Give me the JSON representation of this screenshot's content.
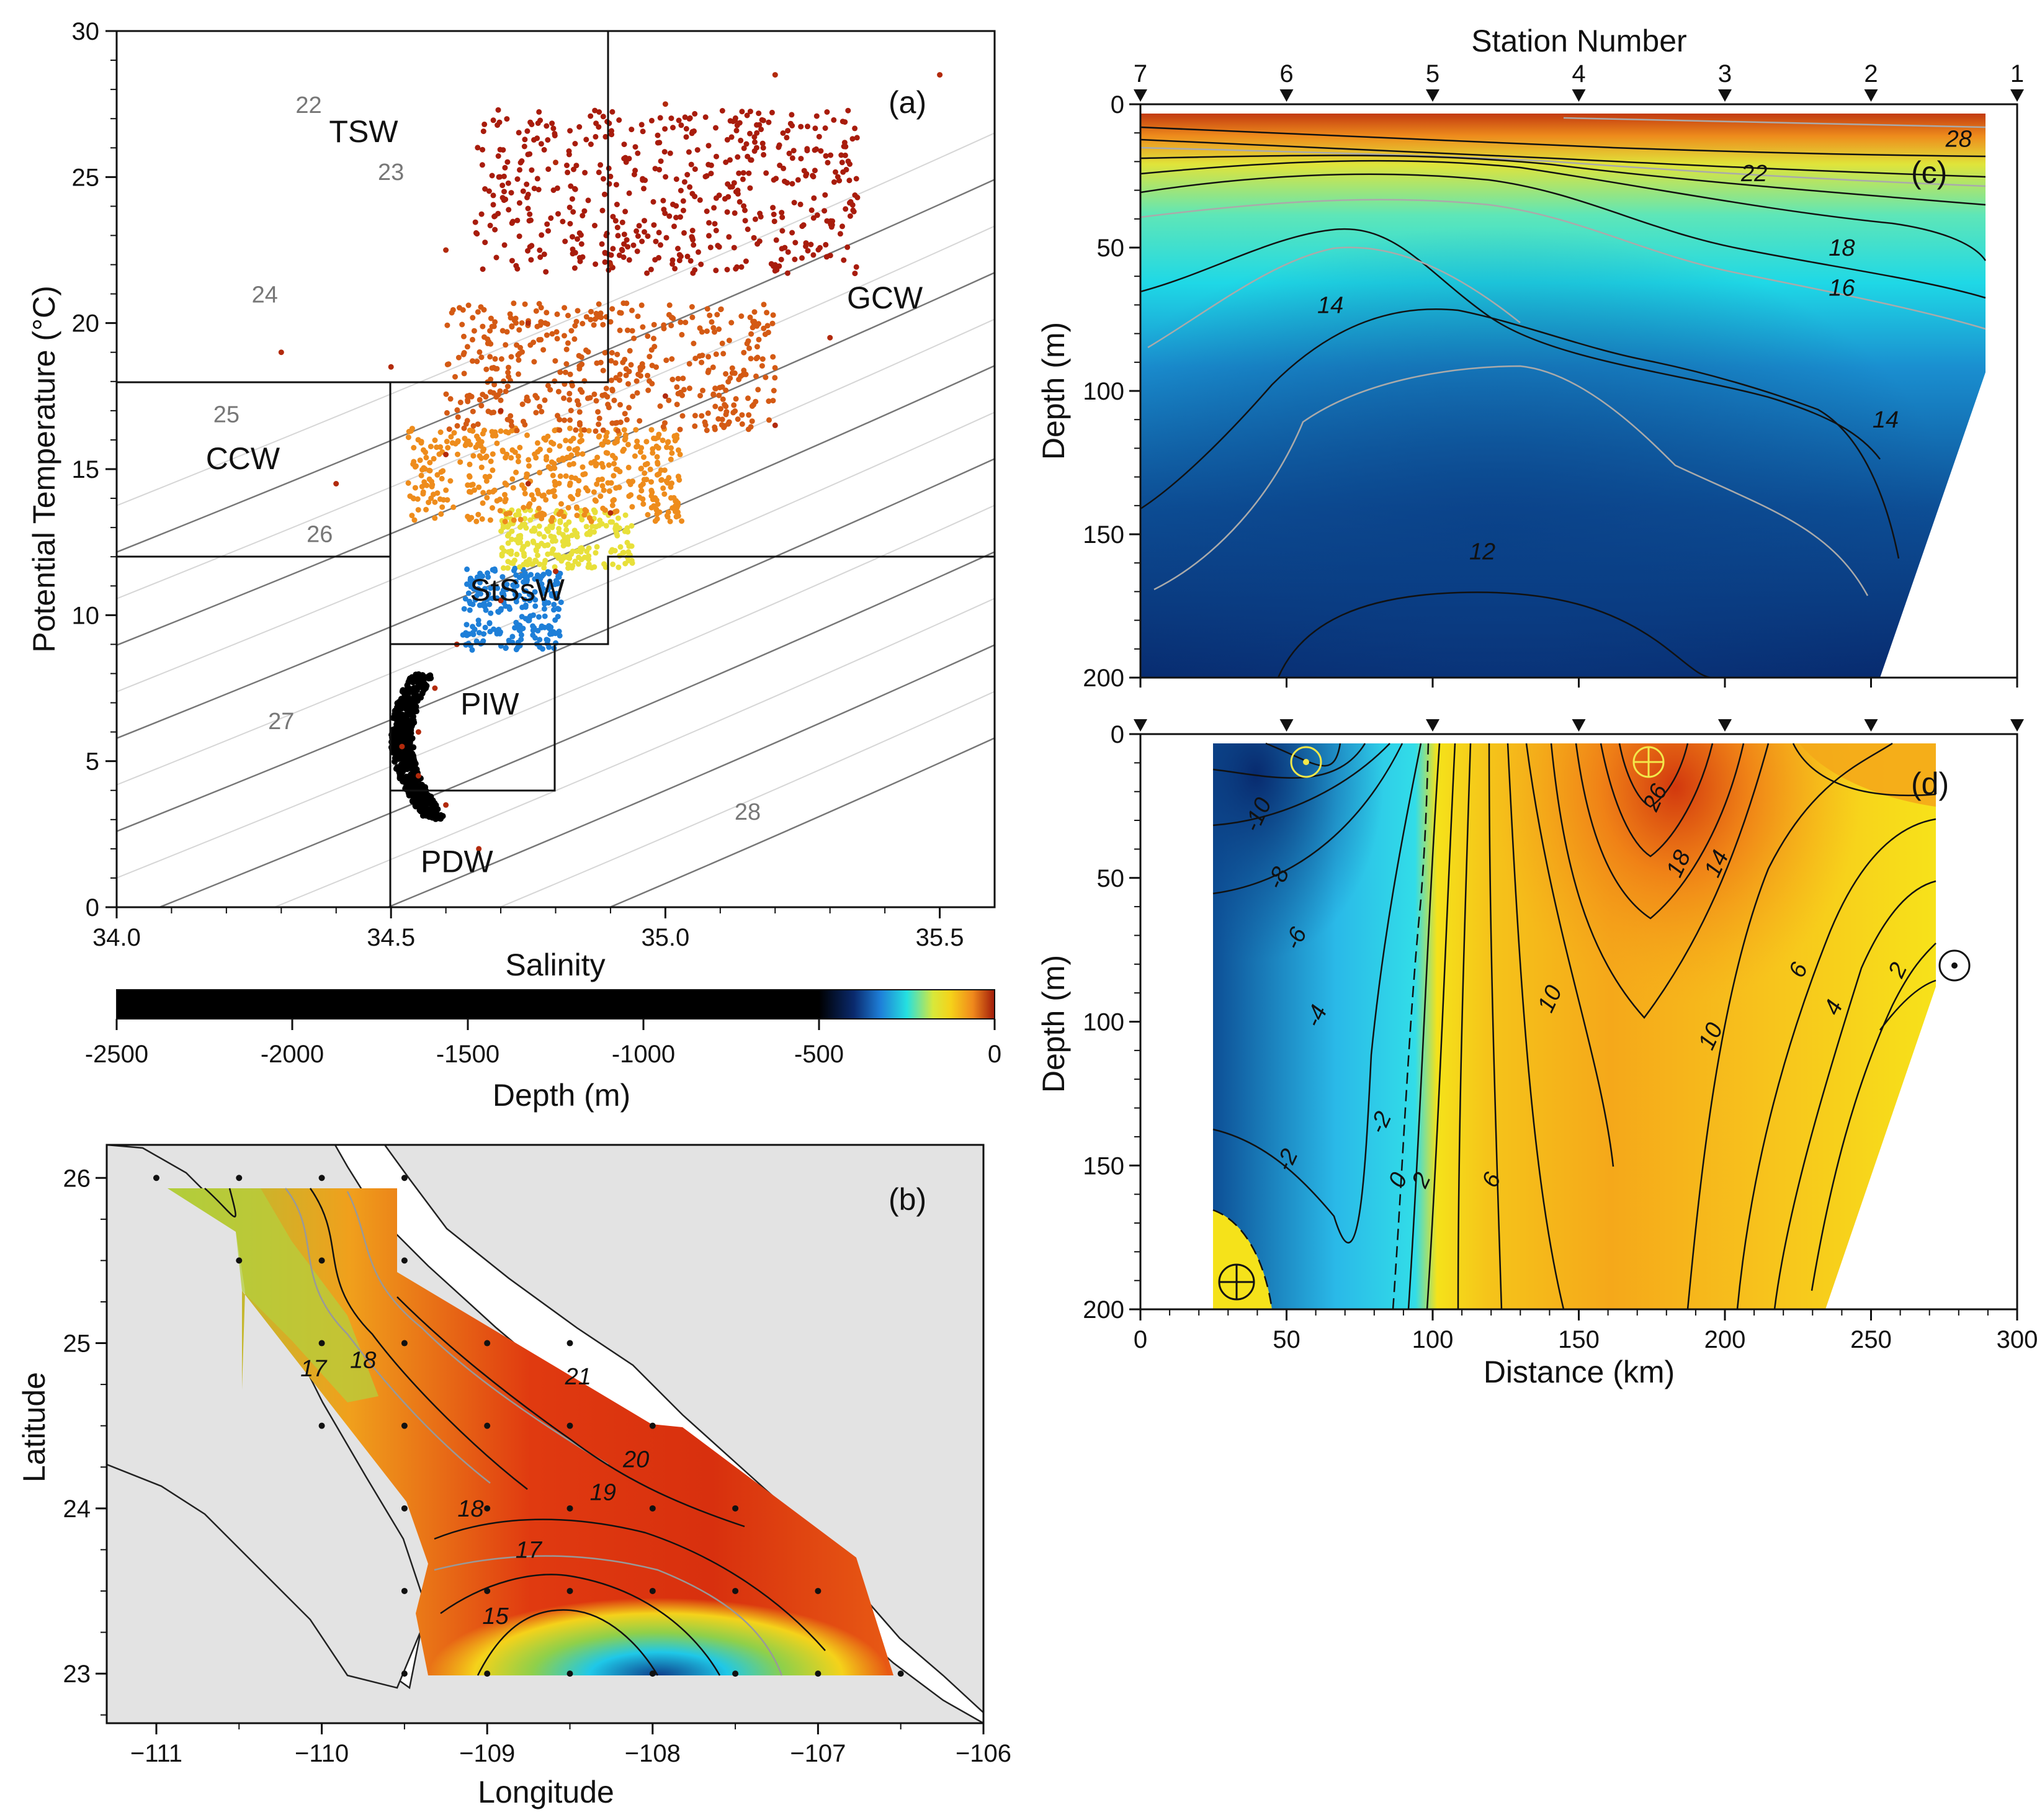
{
  "chart_data": [
    {
      "panel": "(a)",
      "type": "scatter",
      "xlabel": "Salinity",
      "ylabel": "Potential Temperature (°C)",
      "xlim": [
        34.0,
        35.6
      ],
      "ylim": [
        0,
        30
      ],
      "xticks": [
        "34.0",
        "34.5",
        "35.0",
        "35.5"
      ],
      "yticks": [
        "0",
        "5",
        "10",
        "15",
        "20",
        "25",
        "30"
      ],
      "sigma_labels": [
        "22",
        "23",
        "24",
        "25",
        "26",
        "27",
        "28"
      ],
      "water_masses": [
        {
          "name": "TSW",
          "s": 34.45,
          "t": 26.2
        },
        {
          "name": "GCW",
          "s": 35.4,
          "t": 20.5
        },
        {
          "name": "CCW",
          "s": 34.23,
          "t": 15.0
        },
        {
          "name": "StSsW",
          "s": 34.73,
          "t": 10.5
        },
        {
          "name": "PIW",
          "s": 34.68,
          "t": 6.6
        },
        {
          "name": "PDW",
          "s": 34.62,
          "t": 1.2
        }
      ],
      "colorbar": {
        "label": "Depth (m)",
        "ticks": [
          "-2500",
          "-2000",
          "-1500",
          "-1000",
          "-500",
          "0"
        ],
        "range": [
          -2500,
          0
        ],
        "colors": [
          "#000000",
          "#0a2a6e",
          "#1e7fd8",
          "#25e0e0",
          "#d8e83a",
          "#f5d21a",
          "#f08a1c",
          "#a01a0a"
        ]
      },
      "series": [
        {
          "values": [
            [
              34.55,
              6.0
            ],
            [
              34.52,
              5.5
            ],
            [
              34.55,
              4.5
            ],
            [
              34.6,
              3.5
            ],
            [
              34.66,
              2.0
            ],
            [
              34.58,
              7.5
            ],
            [
              34.62,
              9.0
            ]
          ]
        },
        {
          "values": [
            [
              34.7,
              10.5
            ],
            [
              34.8,
              11.5
            ],
            [
              34.9,
              13.5
            ],
            [
              34.75,
              14.5
            ],
            [
              34.6,
              15.5
            ]
          ]
        },
        {
          "values": [
            [
              34.3,
              19.0
            ],
            [
              34.5,
              18.5
            ],
            [
              34.7,
              17.0
            ],
            [
              35.0,
              17.5
            ],
            [
              35.3,
              19.5
            ],
            [
              35.2,
              16.5
            ],
            [
              34.4,
              14.5
            ]
          ]
        },
        {
          "values": [
            [
              34.6,
              22.5
            ],
            [
              34.8,
              25.5
            ],
            [
              35.0,
              27.5
            ],
            [
              35.2,
              28.5
            ],
            [
              35.5,
              28.5
            ],
            [
              34.9,
              22.0
            ],
            [
              34.75,
              20.0
            ]
          ]
        }
      ]
    },
    {
      "panel": "(b)",
      "type": "heatmap",
      "xlabel": "Longitude",
      "ylabel": "Latitude",
      "xlim": [
        -111.3,
        -106.0
      ],
      "ylim": [
        22.7,
        26.2
      ],
      "xticks": [
        "−111",
        "−110",
        "−109",
        "−108",
        "−107",
        "−106"
      ],
      "yticks": [
        "23",
        "24",
        "25",
        "26"
      ],
      "contour_labels": [
        {
          "text": "17",
          "lon": -110.05,
          "lat": 24.8
        },
        {
          "text": "18",
          "lon": -109.75,
          "lat": 24.85
        },
        {
          "text": "21",
          "lon": -108.45,
          "lat": 24.75
        },
        {
          "text": "20",
          "lon": -108.1,
          "lat": 24.25
        },
        {
          "text": "19",
          "lon": -108.3,
          "lat": 24.05
        },
        {
          "text": "18",
          "lon": -109.1,
          "lat": 23.95
        },
        {
          "text": "17",
          "lon": -108.75,
          "lat": 23.7
        },
        {
          "text": "15",
          "lon": -108.95,
          "lat": 23.3
        }
      ]
    },
    {
      "panel": "(c)",
      "type": "heatmap",
      "title": "Station Number",
      "ylabel": "Depth (m)",
      "xlim": [
        0,
        300
      ],
      "ylim": [
        200,
        0
      ],
      "yticks": [
        "0",
        "50",
        "100",
        "150",
        "200"
      ],
      "stations": [
        "7",
        "6",
        "5",
        "4",
        "3",
        "2",
        "1"
      ],
      "station_km": [
        0,
        50,
        100,
        150,
        200,
        250,
        300
      ],
      "contour_labels": [
        {
          "text": "28",
          "km": 280,
          "depth": 12
        },
        {
          "text": "22",
          "km": 210,
          "depth": 24
        },
        {
          "text": "18",
          "km": 240,
          "depth": 50
        },
        {
          "text": "16",
          "km": 240,
          "depth": 64
        },
        {
          "text": "14",
          "km": 65,
          "depth": 70
        },
        {
          "text": "14",
          "km": 255,
          "depth": 110
        },
        {
          "text": "12",
          "km": 117,
          "depth": 156
        }
      ]
    },
    {
      "panel": "(d)",
      "type": "heatmap",
      "xlabel": "Distance (km)",
      "ylabel": "Depth (m)",
      "xlim": [
        0,
        300
      ],
      "ylim": [
        200,
        0
      ],
      "xticks": [
        "0",
        "50",
        "100",
        "150",
        "200",
        "250",
        "300"
      ],
      "yticks": [
        "0",
        "50",
        "100",
        "150",
        "200"
      ],
      "contour_labels": [
        {
          "text": "-10",
          "km": 40,
          "depth": 28
        },
        {
          "text": "-8",
          "km": 47,
          "depth": 50
        },
        {
          "text": "-6",
          "km": 53,
          "depth": 71
        },
        {
          "text": "-4",
          "km": 60,
          "depth": 98
        },
        {
          "text": "-2",
          "km": 50,
          "depth": 148
        },
        {
          "text": "-2",
          "km": 82,
          "depth": 135
        },
        {
          "text": "0",
          "km": 88,
          "depth": 155
        },
        {
          "text": "2",
          "km": 96,
          "depth": 155
        },
        {
          "text": "6",
          "km": 120,
          "depth": 155
        },
        {
          "text": "10",
          "km": 140,
          "depth": 92
        },
        {
          "text": "10",
          "km": 195,
          "depth": 105
        },
        {
          "text": "14",
          "km": 197,
          "depth": 45
        },
        {
          "text": "18",
          "km": 184,
          "depth": 45
        },
        {
          "text": "26",
          "km": 176,
          "depth": 22
        },
        {
          "text": "6",
          "km": 225,
          "depth": 82
        },
        {
          "text": "4",
          "km": 237,
          "depth": 95
        },
        {
          "text": "2",
          "km": 259,
          "depth": 82
        }
      ]
    }
  ]
}
